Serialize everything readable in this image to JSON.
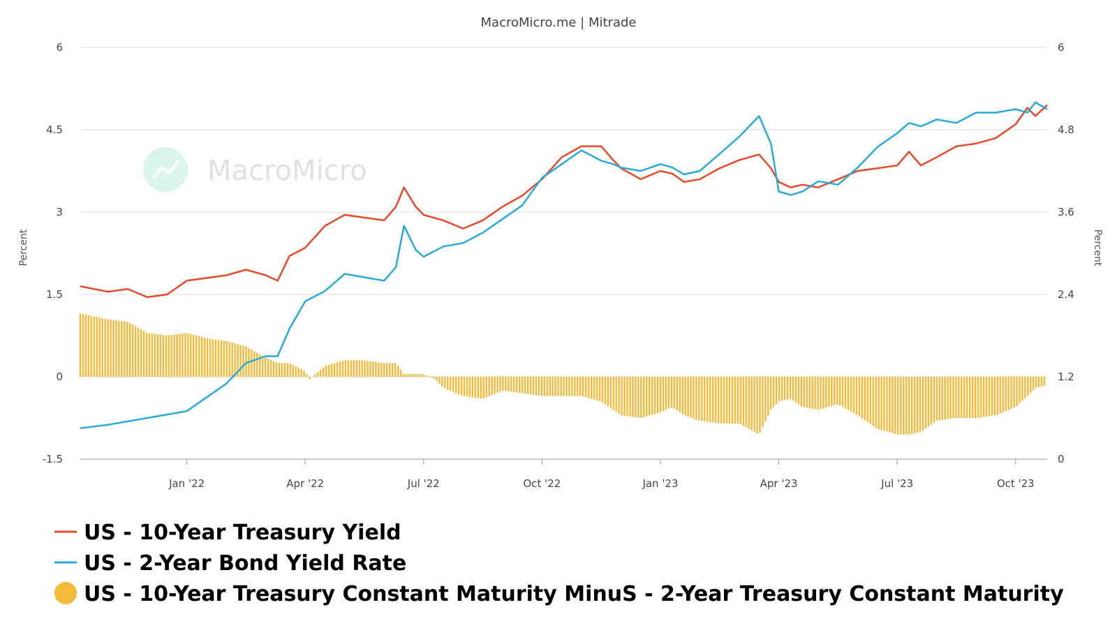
{
  "header": {
    "source_title": "MacroMicro.me | Mitrade"
  },
  "watermark": {
    "text": "MacroMicro"
  },
  "colors": {
    "ten_year": "#e8492a",
    "two_year": "#2aa9d8",
    "spread": "#f5b93a",
    "grid": "#dddddd"
  },
  "chart_data": {
    "type": "line",
    "title": "MacroMicro.me | Mitrade",
    "xlabel": "",
    "ylabel_left": "Percent",
    "ylabel_right": "Percent",
    "ylim_left": [
      -1.5,
      6
    ],
    "ylim_right": [
      0,
      6
    ],
    "left_ticks": [
      "6",
      "4.5",
      "3",
      "1.5",
      "0",
      "-1.5"
    ],
    "right_ticks": [
      "6",
      "4.8",
      "3.6",
      "2.4",
      "1.2",
      "0"
    ],
    "x_tick_labels": [
      "Jan '22",
      "Apr '22",
      "Jul '22",
      "Oct '22",
      "Jan '23",
      "Apr '23",
      "Jul '23",
      "Oct '23"
    ],
    "x_tick_months": [
      2.0,
      5.0,
      8.0,
      11.0,
      14.0,
      17.0,
      20.0,
      23.0
    ],
    "x_range_months": [
      -0.7,
      23.8
    ],
    "grid": true,
    "legend_position": "bottom-left",
    "series": [
      {
        "name": "US - 10-Year Treasury Yield",
        "axis": "left",
        "style": "line",
        "points": [
          [
            -0.7,
            1.65
          ],
          [
            0.0,
            1.55
          ],
          [
            0.5,
            1.6
          ],
          [
            1.0,
            1.45
          ],
          [
            1.5,
            1.5
          ],
          [
            2.0,
            1.75
          ],
          [
            2.5,
            1.8
          ],
          [
            3.0,
            1.85
          ],
          [
            3.5,
            1.95
          ],
          [
            4.0,
            1.85
          ],
          [
            4.3,
            1.75
          ],
          [
            4.6,
            2.2
          ],
          [
            5.0,
            2.35
          ],
          [
            5.5,
            2.75
          ],
          [
            6.0,
            2.95
          ],
          [
            6.5,
            2.9
          ],
          [
            7.0,
            2.85
          ],
          [
            7.3,
            3.1
          ],
          [
            7.5,
            3.45
          ],
          [
            7.8,
            3.1
          ],
          [
            8.0,
            2.95
          ],
          [
            8.5,
            2.85
          ],
          [
            9.0,
            2.7
          ],
          [
            9.5,
            2.85
          ],
          [
            10.0,
            3.1
          ],
          [
            10.5,
            3.3
          ],
          [
            11.0,
            3.6
          ],
          [
            11.5,
            4.0
          ],
          [
            12.0,
            4.2
          ],
          [
            12.5,
            4.2
          ],
          [
            12.8,
            3.95
          ],
          [
            13.0,
            3.8
          ],
          [
            13.5,
            3.6
          ],
          [
            14.0,
            3.75
          ],
          [
            14.3,
            3.7
          ],
          [
            14.6,
            3.55
          ],
          [
            15.0,
            3.6
          ],
          [
            15.5,
            3.8
          ],
          [
            16.0,
            3.95
          ],
          [
            16.5,
            4.05
          ],
          [
            16.8,
            3.8
          ],
          [
            17.0,
            3.55
          ],
          [
            17.3,
            3.45
          ],
          [
            17.6,
            3.5
          ],
          [
            18.0,
            3.45
          ],
          [
            18.5,
            3.6
          ],
          [
            19.0,
            3.75
          ],
          [
            19.5,
            3.8
          ],
          [
            20.0,
            3.85
          ],
          [
            20.3,
            4.1
          ],
          [
            20.6,
            3.85
          ],
          [
            21.0,
            4.0
          ],
          [
            21.5,
            4.2
          ],
          [
            22.0,
            4.25
          ],
          [
            22.5,
            4.35
          ],
          [
            23.0,
            4.6
          ],
          [
            23.3,
            4.9
          ],
          [
            23.5,
            4.75
          ],
          [
            23.8,
            4.95
          ]
        ]
      },
      {
        "name": "US - 2-Year Bond Yield Rate",
        "axis": "right",
        "style": "line",
        "points": [
          [
            -0.7,
            0.45
          ],
          [
            0.0,
            0.5
          ],
          [
            0.5,
            0.55
          ],
          [
            1.0,
            0.6
          ],
          [
            1.5,
            0.65
          ],
          [
            2.0,
            0.7
          ],
          [
            2.5,
            0.9
          ],
          [
            3.0,
            1.1
          ],
          [
            3.5,
            1.4
          ],
          [
            4.0,
            1.5
          ],
          [
            4.3,
            1.5
          ],
          [
            4.6,
            1.9
          ],
          [
            5.0,
            2.3
          ],
          [
            5.5,
            2.45
          ],
          [
            6.0,
            2.7
          ],
          [
            6.5,
            2.65
          ],
          [
            7.0,
            2.6
          ],
          [
            7.3,
            2.8
          ],
          [
            7.5,
            3.4
          ],
          [
            7.8,
            3.05
          ],
          [
            8.0,
            2.95
          ],
          [
            8.5,
            3.1
          ],
          [
            9.0,
            3.15
          ],
          [
            9.5,
            3.3
          ],
          [
            10.0,
            3.5
          ],
          [
            10.5,
            3.7
          ],
          [
            11.0,
            4.1
          ],
          [
            11.5,
            4.3
          ],
          [
            12.0,
            4.5
          ],
          [
            12.5,
            4.35
          ],
          [
            12.8,
            4.3
          ],
          [
            13.0,
            4.25
          ],
          [
            13.5,
            4.2
          ],
          [
            14.0,
            4.3
          ],
          [
            14.3,
            4.25
          ],
          [
            14.6,
            4.15
          ],
          [
            15.0,
            4.2
          ],
          [
            15.5,
            4.45
          ],
          [
            16.0,
            4.7
          ],
          [
            16.5,
            5.0
          ],
          [
            16.8,
            4.6
          ],
          [
            17.0,
            3.9
          ],
          [
            17.3,
            3.85
          ],
          [
            17.6,
            3.9
          ],
          [
            18.0,
            4.05
          ],
          [
            18.5,
            4.0
          ],
          [
            19.0,
            4.25
          ],
          [
            19.5,
            4.55
          ],
          [
            20.0,
            4.75
          ],
          [
            20.3,
            4.9
          ],
          [
            20.6,
            4.85
          ],
          [
            21.0,
            4.95
          ],
          [
            21.5,
            4.9
          ],
          [
            22.0,
            5.05
          ],
          [
            22.5,
            5.05
          ],
          [
            23.0,
            5.1
          ],
          [
            23.3,
            5.05
          ],
          [
            23.5,
            5.2
          ],
          [
            23.8,
            5.1
          ]
        ]
      },
      {
        "name": "US - 10-Year Treasury Constant Maturity MinuS - 2-Year Treasury Constant Maturity",
        "axis": "left",
        "style": "bar",
        "points": [
          [
            -0.7,
            1.15
          ],
          [
            0.0,
            1.05
          ],
          [
            0.5,
            1.0
          ],
          [
            1.0,
            0.8
          ],
          [
            1.5,
            0.75
          ],
          [
            2.0,
            0.8
          ],
          [
            2.5,
            0.7
          ],
          [
            3.0,
            0.65
          ],
          [
            3.5,
            0.55
          ],
          [
            4.0,
            0.35
          ],
          [
            4.3,
            0.25
          ],
          [
            4.6,
            0.25
          ],
          [
            5.0,
            0.1
          ],
          [
            5.1,
            -0.05
          ],
          [
            5.5,
            0.2
          ],
          [
            6.0,
            0.3
          ],
          [
            6.5,
            0.3
          ],
          [
            7.0,
            0.25
          ],
          [
            7.3,
            0.25
          ],
          [
            7.5,
            0.05
          ],
          [
            8.0,
            0.05
          ],
          [
            8.3,
            -0.05
          ],
          [
            8.5,
            -0.2
          ],
          [
            9.0,
            -0.35
          ],
          [
            9.5,
            -0.4
          ],
          [
            10.0,
            -0.25
          ],
          [
            10.5,
            -0.3
          ],
          [
            11.0,
            -0.35
          ],
          [
            11.5,
            -0.35
          ],
          [
            12.0,
            -0.35
          ],
          [
            12.5,
            -0.45
          ],
          [
            13.0,
            -0.7
          ],
          [
            13.5,
            -0.75
          ],
          [
            14.0,
            -0.65
          ],
          [
            14.3,
            -0.55
          ],
          [
            14.6,
            -0.7
          ],
          [
            15.0,
            -0.8
          ],
          [
            15.5,
            -0.85
          ],
          [
            16.0,
            -0.85
          ],
          [
            16.5,
            -1.05
          ],
          [
            16.8,
            -0.6
          ],
          [
            17.0,
            -0.45
          ],
          [
            17.3,
            -0.4
          ],
          [
            17.6,
            -0.55
          ],
          [
            18.0,
            -0.6
          ],
          [
            18.5,
            -0.5
          ],
          [
            19.0,
            -0.7
          ],
          [
            19.5,
            -0.95
          ],
          [
            20.0,
            -1.05
          ],
          [
            20.3,
            -1.05
          ],
          [
            20.6,
            -1.0
          ],
          [
            21.0,
            -0.8
          ],
          [
            21.5,
            -0.75
          ],
          [
            22.0,
            -0.75
          ],
          [
            22.5,
            -0.7
          ],
          [
            23.0,
            -0.55
          ],
          [
            23.3,
            -0.35
          ],
          [
            23.5,
            -0.2
          ],
          [
            23.8,
            -0.15
          ]
        ]
      }
    ]
  },
  "legend": {
    "items": [
      {
        "label": "US - 10-Year Treasury Yield",
        "marker": "line",
        "color": "#e8492a"
      },
      {
        "label": "US - 2-Year Bond Yield Rate",
        "marker": "line",
        "color": "#2aa9d8"
      },
      {
        "label": "US - 10-Year Treasury Constant Maturity MinuS - 2-Year Treasury Constant Maturity",
        "marker": "circle",
        "color": "#f5b93a"
      }
    ]
  }
}
